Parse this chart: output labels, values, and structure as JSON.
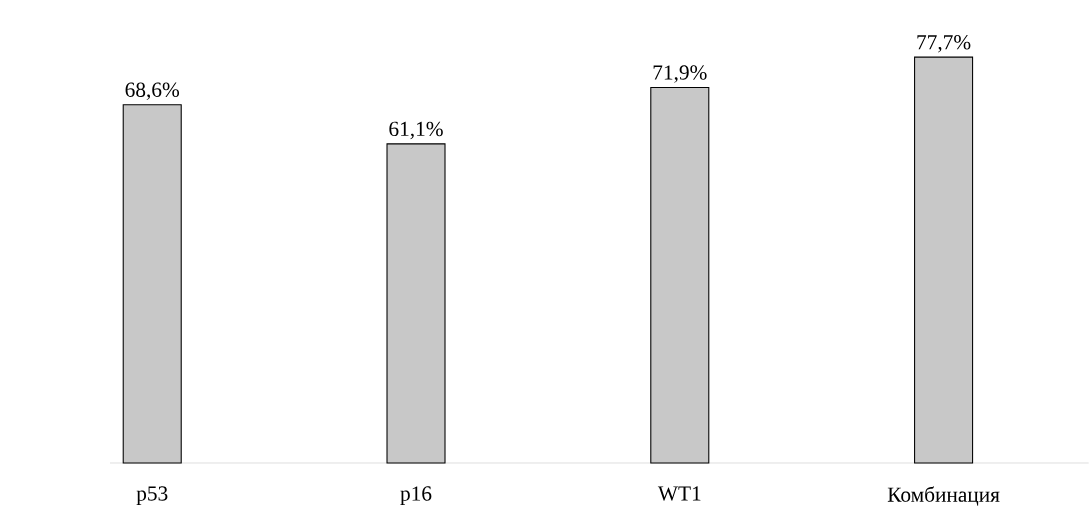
{
  "chart_data": {
    "type": "bar",
    "categories": [
      "p53",
      "p16",
      "WT1",
      "Комбинация"
    ],
    "values": [
      68.6,
      61.1,
      71.9,
      77.7
    ],
    "value_labels": [
      "68,6%",
      "61,1%",
      "71,9%",
      "77,7%"
    ],
    "color": "#c8c8c8"
  }
}
